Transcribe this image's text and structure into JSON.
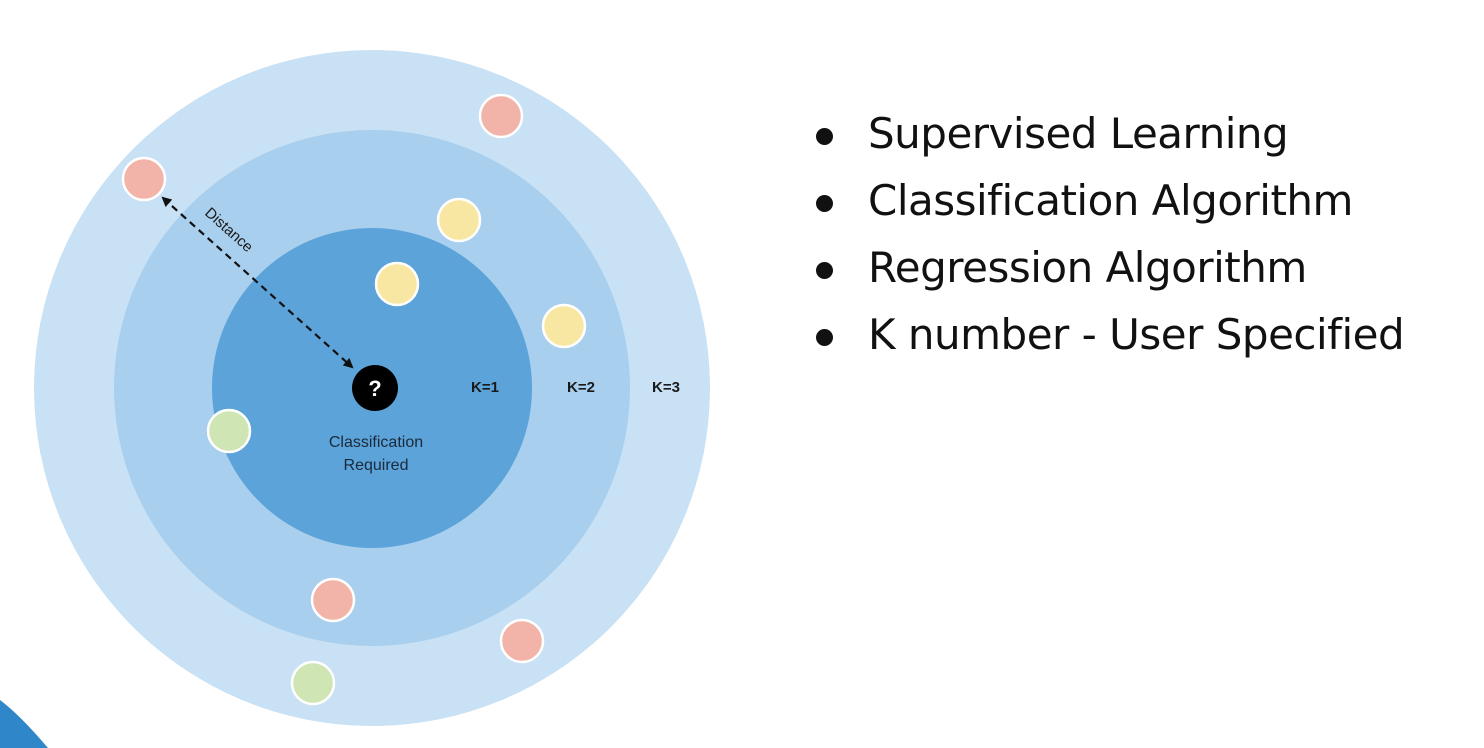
{
  "diagram": {
    "rings": {
      "k1_label": "K=1",
      "k2_label": "K=2",
      "k3_label": "K=3"
    },
    "distance_label": "Distance",
    "query_point": {
      "symbol": "?",
      "caption_line1": "Classification",
      "caption_line2": "Required"
    },
    "colors": {
      "outer_ring": "#c9e1f4",
      "middle_ring": "#a8cfee",
      "inner_ring": "#5ba3d9",
      "red_point": "#f2b4a8",
      "yellow_point": "#f8e7a3",
      "green_point": "#cfe5b4",
      "query_point": "#000000",
      "corner_accent": "#2f86c8"
    },
    "points": [
      {
        "class": "red"
      },
      {
        "class": "red"
      },
      {
        "class": "yellow"
      },
      {
        "class": "yellow"
      },
      {
        "class": "yellow"
      },
      {
        "class": "green"
      },
      {
        "class": "red"
      },
      {
        "class": "red"
      },
      {
        "class": "green"
      }
    ]
  },
  "bullets": [
    "Supervised Learning",
    "Classification Algorithm",
    "Regression Algorithm",
    "K number - User Specified"
  ]
}
